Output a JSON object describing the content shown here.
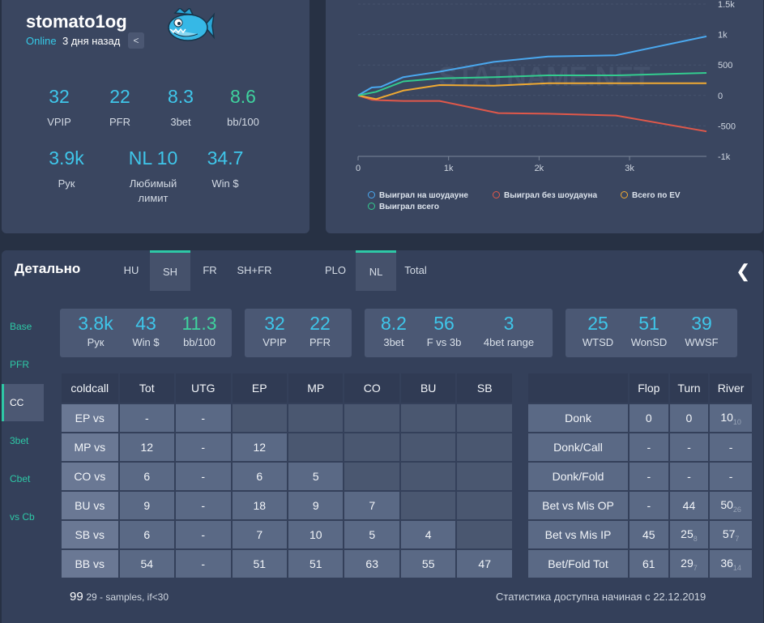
{
  "profile": {
    "username": "stomato1og",
    "online": "Online",
    "last_seen": "3 дня назад",
    "stats": [
      {
        "value": "32",
        "label": "VPIP",
        "color": "#3fc6ea"
      },
      {
        "value": "22",
        "label": "PFR",
        "color": "#3fc6ea"
      },
      {
        "value": "8.3",
        "label": "3bet",
        "color": "#3fc6ea"
      },
      {
        "value": "8.6",
        "label": "bb/100",
        "color": "#3fd29e"
      },
      {
        "value": "3.9k",
        "label": "Рук",
        "color": "#3fc6ea"
      },
      {
        "value": "NL 10",
        "label": "Любимый лимит",
        "color": "#3fc6ea"
      },
      {
        "value": "34.7",
        "label": "Win $",
        "color": "#3fc6ea"
      }
    ]
  },
  "chart_data": {
    "type": "line",
    "watermark": "STATNAME.NET",
    "x_ticks": [
      "0",
      "1k",
      "2k",
      "3k"
    ],
    "y_ticks": [
      "1.5k",
      "1k",
      "500",
      "0",
      "-500",
      "-1k"
    ],
    "xlim": [
      0,
      3850
    ],
    "ylim": [
      -1000,
      1500
    ],
    "series": [
      {
        "name": "Выиграл на шоудауне",
        "color": "#4aa8ef",
        "x": [
          0,
          150,
          250,
          500,
          900,
          1500,
          2100,
          2850,
          3850
        ],
        "y": [
          0,
          130,
          140,
          300,
          390,
          550,
          640,
          660,
          970
        ]
      },
      {
        "name": "Выиграл без шоудауна",
        "color": "#e0584a",
        "x": [
          0,
          150,
          250,
          500,
          900,
          1550,
          2100,
          2850,
          3850
        ],
        "y": [
          0,
          -70,
          -80,
          -90,
          -90,
          -290,
          -300,
          -330,
          -590
        ]
      },
      {
        "name": "Всего по EV",
        "color": "#f0aa32",
        "x": [
          0,
          200,
          500,
          900,
          1500,
          2100,
          2850,
          3850
        ],
        "y": [
          0,
          -60,
          80,
          170,
          160,
          200,
          200,
          200
        ]
      },
      {
        "name": "Выиграл всего",
        "color": "#33cc8f",
        "x": [
          0,
          200,
          500,
          900,
          1500,
          2100,
          2850,
          3850
        ],
        "y": [
          0,
          60,
          230,
          280,
          300,
          330,
          330,
          370
        ]
      }
    ]
  },
  "detail": {
    "title": "Детально",
    "tabs": [
      {
        "label": "HU",
        "active": false
      },
      {
        "label": "SH",
        "active": true
      },
      {
        "label": "FR",
        "active": false
      },
      {
        "label": "SH+FR",
        "active": false
      },
      {
        "label": "PLO",
        "active": false
      },
      {
        "label": "NL",
        "active": true
      },
      {
        "label": "Total",
        "active": false
      }
    ],
    "back_icon": "chevron-left-icon",
    "side": [
      {
        "label": "Base",
        "active": false
      },
      {
        "label": "PFR",
        "active": false
      },
      {
        "label": "CC",
        "active": true
      },
      {
        "label": "3bet",
        "active": false
      },
      {
        "label": "Cbet",
        "active": false
      },
      {
        "label": "vs Cb",
        "active": false
      }
    ],
    "groups": [
      [
        {
          "value": "3.8k",
          "label": "Рук",
          "color": "#3fc6ea"
        },
        {
          "value": "43",
          "label": "Win $",
          "color": "#3fc6ea"
        },
        {
          "value": "11.3",
          "label": "bb/100",
          "color": "#3fd29e"
        }
      ],
      [
        {
          "value": "32",
          "label": "VPIP",
          "color": "#3fc6ea"
        },
        {
          "value": "22",
          "label": "PFR",
          "color": "#3fc6ea"
        }
      ],
      [
        {
          "value": "8.2",
          "label": "3bet",
          "color": "#3fc6ea"
        },
        {
          "value": "56",
          "label": "F vs 3b",
          "color": "#3fc6ea"
        },
        {
          "value": "3",
          "label": "4bet range",
          "color": "#3fc6ea"
        }
      ],
      [
        {
          "value": "25",
          "label": "WTSD",
          "color": "#3fc6ea"
        },
        {
          "value": "51",
          "label": "WonSD",
          "color": "#3fc6ea"
        },
        {
          "value": "39",
          "label": "WWSF",
          "color": "#3fc6ea"
        }
      ]
    ],
    "coldcall": {
      "headers": [
        "coldcall",
        "Tot",
        "UTG",
        "EP",
        "MP",
        "CO",
        "BU",
        "SB"
      ],
      "rows": [
        [
          "EP vs",
          "-",
          "-",
          "",
          "",
          "",
          "",
          ""
        ],
        [
          "MP vs",
          "12",
          "-",
          "12",
          "",
          "",
          "",
          ""
        ],
        [
          "CO vs",
          "6",
          "-",
          "6",
          "5",
          "",
          "",
          ""
        ],
        [
          "BU vs",
          "9",
          "-",
          "18",
          "9",
          "7",
          "",
          ""
        ],
        [
          "SB vs",
          "6",
          "-",
          "7",
          "10",
          "5",
          "4",
          ""
        ],
        [
          "BB vs",
          "54",
          "-",
          "51",
          "51",
          "63",
          "55",
          "47"
        ]
      ]
    },
    "postflop": {
      "headers": [
        "",
        "Flop",
        "Turn",
        "River"
      ],
      "rows": [
        [
          {
            "v": "Donk"
          },
          {
            "v": "0"
          },
          {
            "v": "0"
          },
          {
            "v": "10",
            "s": "10"
          }
        ],
        [
          {
            "v": "Donk/Call"
          },
          {
            "v": "-"
          },
          {
            "v": "-"
          },
          {
            "v": "-"
          }
        ],
        [
          {
            "v": "Donk/Fold"
          },
          {
            "v": "-"
          },
          {
            "v": "-"
          },
          {
            "v": "-"
          }
        ],
        [
          {
            "v": "Bet vs Mis OP"
          },
          {
            "v": "-"
          },
          {
            "v": "44"
          },
          {
            "v": "50",
            "s": "26"
          }
        ],
        [
          {
            "v": "Bet vs Mis IP"
          },
          {
            "v": "45"
          },
          {
            "v": "25",
            "s": "8"
          },
          {
            "v": "57",
            "s": "7"
          }
        ],
        [
          {
            "v": "Bet/Fold Tot"
          },
          {
            "v": "61"
          },
          {
            "v": "29",
            "s": "7"
          },
          {
            "v": "36",
            "s": "14"
          }
        ]
      ]
    },
    "footer_left_value": "99",
    "footer_left_note": "29 - samples, if<30",
    "footer_right": "Статистика доступна начиная с 22.12.2019"
  }
}
